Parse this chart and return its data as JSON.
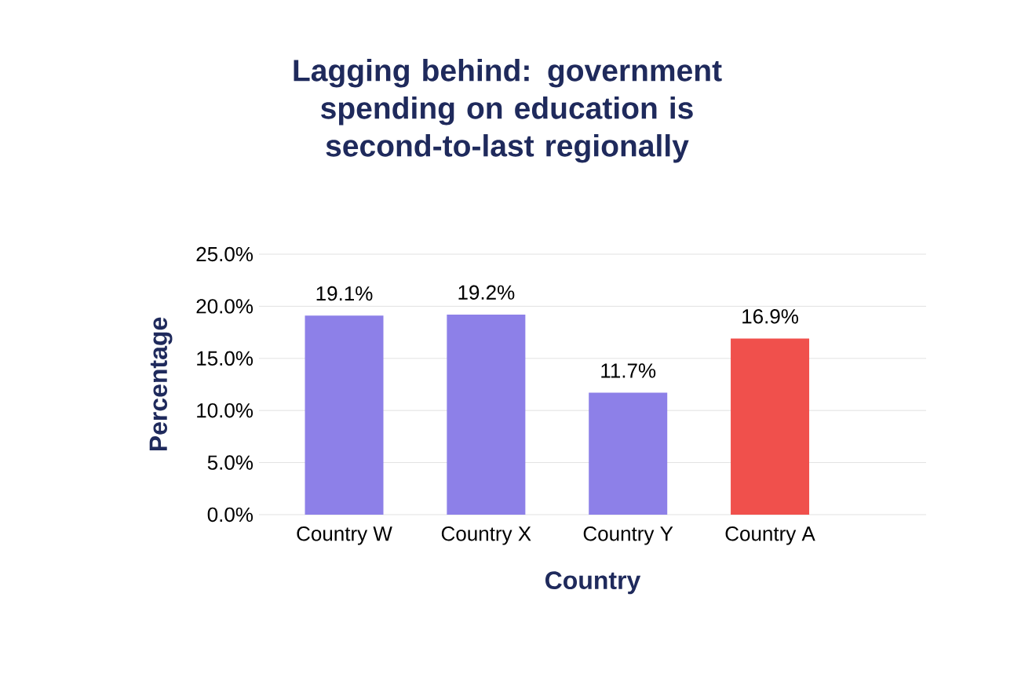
{
  "chart_data": {
    "type": "bar",
    "title": "Lagging behind: government spending on education is second-to-last regionally",
    "xlabel": "Country",
    "ylabel": "Percentage",
    "categories": [
      "Country W",
      "Country X",
      "Country Y",
      "Country A"
    ],
    "values": [
      19.1,
      19.2,
      11.7,
      16.9
    ],
    "colors": [
      "#8d80e8",
      "#8d80e8",
      "#8d80e8",
      "#f0504c"
    ],
    "value_labels": [
      "19.1%",
      "19.2%",
      "11.7%",
      "16.9%"
    ],
    "ylim": [
      0,
      25
    ],
    "yticks": [
      {
        "value": 0,
        "label": "0.0%"
      },
      {
        "value": 5,
        "label": "5.0%"
      },
      {
        "value": 10,
        "label": "10.0%"
      },
      {
        "value": 15,
        "label": "15.0%"
      },
      {
        "value": 20,
        "label": "20.0%"
      },
      {
        "value": 25,
        "label": "25.0%"
      }
    ],
    "grid": "y"
  }
}
